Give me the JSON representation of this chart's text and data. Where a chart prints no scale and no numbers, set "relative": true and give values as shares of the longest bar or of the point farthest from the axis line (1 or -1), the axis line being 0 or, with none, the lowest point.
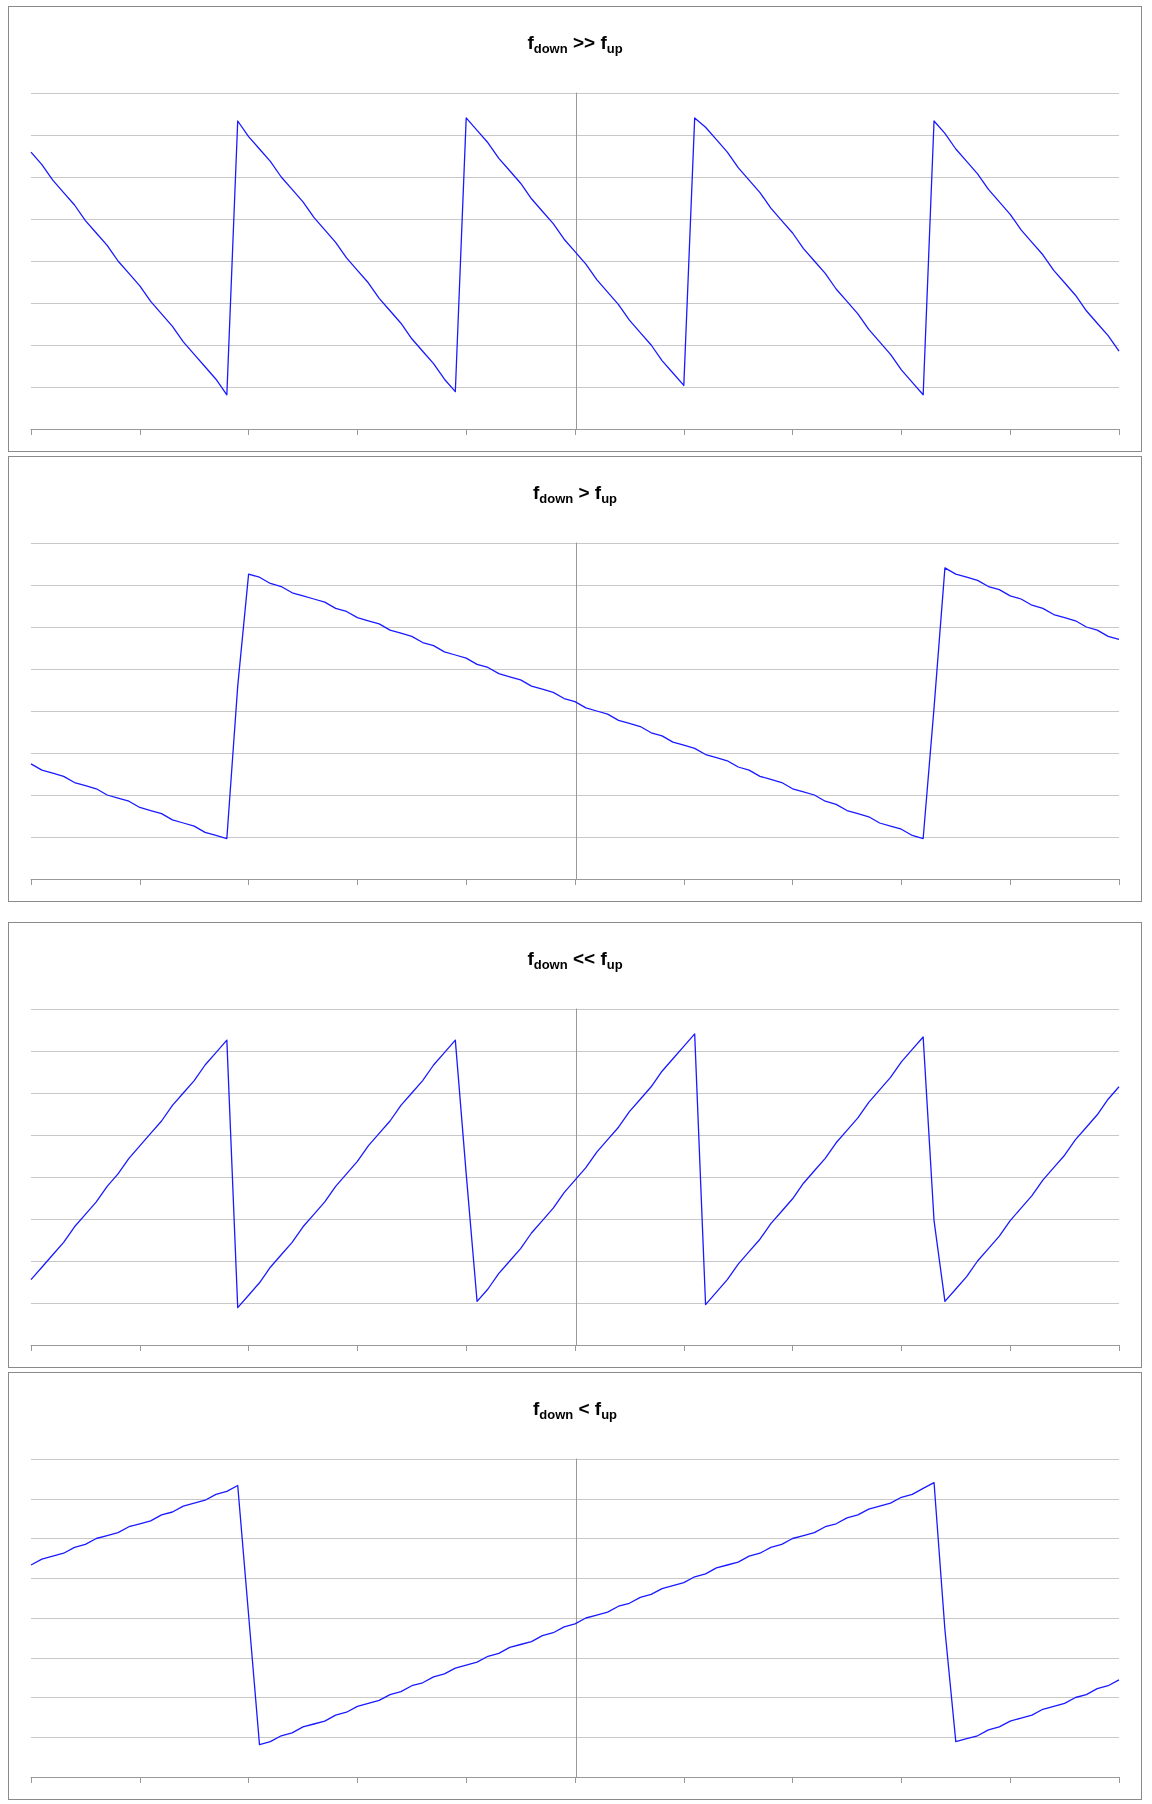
{
  "chart_data": [
    {
      "type": "line",
      "title": "f$_{down}$ >> f$_{up}$",
      "relative": true,
      "grid": "y",
      "categories": [
        null,
        null,
        null,
        null,
        null,
        null,
        null,
        null,
        null,
        null,
        null,
        null,
        null,
        null,
        null,
        null,
        null,
        null,
        null,
        null,
        null,
        null,
        null,
        null,
        null,
        null,
        null,
        null,
        null,
        null,
        null,
        null,
        null,
        null,
        null,
        null,
        null,
        null,
        null,
        null,
        null,
        null,
        null,
        null,
        null,
        null,
        null,
        null,
        null,
        null,
        null,
        null,
        null,
        null,
        null,
        null,
        null,
        null,
        null,
        null,
        null,
        null,
        null,
        null,
        null,
        null,
        null,
        null,
        null,
        null,
        null,
        null,
        null,
        null,
        null,
        null,
        null,
        null,
        null,
        null,
        null,
        null,
        null,
        null,
        null,
        null,
        null,
        null,
        null,
        null,
        null,
        null,
        null,
        null,
        null,
        null,
        null,
        null,
        null,
        null,
        null
      ],
      "series": [
        {
          "color": "#1a1aff",
          "values": [
            0.89,
            0.85,
            0.8,
            0.76,
            0.72,
            0.67,
            0.63,
            0.59,
            0.54,
            0.5,
            0.46,
            0.41,
            0.37,
            0.33,
            0.28,
            0.24,
            0.2,
            0.16,
            0.11,
            0.99,
            0.94,
            0.9,
            0.86,
            0.81,
            0.77,
            0.73,
            0.68,
            0.64,
            0.6,
            0.55,
            0.51,
            0.47,
            0.42,
            0.38,
            0.34,
            0.29,
            0.25,
            0.21,
            0.16,
            0.12,
            1.0,
            0.96,
            0.92,
            0.87,
            0.83,
            0.79,
            0.74,
            0.7,
            0.66,
            0.61,
            0.57,
            0.53,
            0.48,
            0.44,
            0.4,
            0.35,
            0.31,
            0.27,
            0.22,
            0.18,
            0.14,
            1.0,
            0.97,
            0.93,
            0.89,
            0.84,
            0.8,
            0.76,
            0.71,
            0.67,
            0.63,
            0.58,
            0.54,
            0.5,
            0.45,
            0.41,
            0.37,
            0.32,
            0.28,
            0.24,
            0.19,
            0.15,
            0.11,
            0.99,
            0.95,
            0.9,
            0.86,
            0.82,
            0.77,
            0.73,
            0.69,
            0.64,
            0.6,
            0.56,
            0.51,
            0.47,
            0.43,
            0.38,
            0.34,
            0.3,
            0.25
          ]
        }
      ]
    },
    {
      "type": "line",
      "title": "f$_{down}$ > f$_{up}$",
      "relative": true,
      "grid": "y",
      "categories": [
        null,
        null,
        null,
        null,
        null,
        null,
        null,
        null,
        null,
        null,
        null,
        null,
        null,
        null,
        null,
        null,
        null,
        null,
        null,
        null,
        null,
        null,
        null,
        null,
        null,
        null,
        null,
        null,
        null,
        null,
        null,
        null,
        null,
        null,
        null,
        null,
        null,
        null,
        null,
        null,
        null,
        null,
        null,
        null,
        null,
        null,
        null,
        null,
        null,
        null,
        null,
        null,
        null,
        null,
        null,
        null,
        null,
        null,
        null,
        null,
        null,
        null,
        null,
        null,
        null,
        null,
        null,
        null,
        null,
        null,
        null,
        null,
        null,
        null,
        null,
        null,
        null,
        null,
        null,
        null,
        null,
        null,
        null,
        null,
        null,
        null,
        null,
        null,
        null,
        null,
        null,
        null,
        null,
        null,
        null,
        null,
        null,
        null,
        null,
        null,
        null
      ],
      "series": [
        {
          "color": "#1a1aff",
          "values": [
            0.37,
            0.35,
            0.34,
            0.33,
            0.31,
            0.3,
            0.29,
            0.27,
            0.26,
            0.25,
            0.23,
            0.22,
            0.21,
            0.19,
            0.18,
            0.17,
            0.15,
            0.14,
            0.13,
            0.62,
            0.98,
            0.97,
            0.95,
            0.94,
            0.92,
            0.91,
            0.9,
            0.89,
            0.87,
            0.86,
            0.84,
            0.83,
            0.82,
            0.8,
            0.79,
            0.78,
            0.76,
            0.75,
            0.73,
            0.72,
            0.71,
            0.69,
            0.68,
            0.66,
            0.65,
            0.64,
            0.62,
            0.61,
            0.6,
            0.58,
            0.57,
            0.55,
            0.54,
            0.53,
            0.51,
            0.5,
            0.49,
            0.47,
            0.46,
            0.44,
            0.43,
            0.42,
            0.4,
            0.39,
            0.38,
            0.36,
            0.35,
            0.33,
            0.32,
            0.31,
            0.29,
            0.28,
            0.27,
            0.25,
            0.24,
            0.22,
            0.21,
            0.2,
            0.18,
            0.17,
            0.16,
            0.14,
            0.13,
            0.55,
            1.0,
            0.98,
            0.97,
            0.96,
            0.94,
            0.93,
            0.91,
            0.9,
            0.88,
            0.87,
            0.85,
            0.84,
            0.83,
            0.81,
            0.8,
            0.78,
            0.77
          ]
        }
      ]
    },
    {
      "type": "line",
      "title": "f$_{down}$ << f$_{up}$",
      "relative": true,
      "grid": "y",
      "categories": [
        null,
        null,
        null,
        null,
        null,
        null,
        null,
        null,
        null,
        null,
        null,
        null,
        null,
        null,
        null,
        null,
        null,
        null,
        null,
        null,
        null,
        null,
        null,
        null,
        null,
        null,
        null,
        null,
        null,
        null,
        null,
        null,
        null,
        null,
        null,
        null,
        null,
        null,
        null,
        null,
        null,
        null,
        null,
        null,
        null,
        null,
        null,
        null,
        null,
        null,
        null,
        null,
        null,
        null,
        null,
        null,
        null,
        null,
        null,
        null,
        null,
        null,
        null,
        null,
        null,
        null,
        null,
        null,
        null,
        null,
        null,
        null,
        null,
        null,
        null,
        null,
        null,
        null,
        null,
        null,
        null,
        null,
        null,
        null,
        null,
        null,
        null,
        null,
        null,
        null,
        null,
        null,
        null,
        null,
        null,
        null,
        null,
        null,
        null,
        null,
        null
      ],
      "series": [
        {
          "color": "#1a1aff",
          "values": [
            0.21,
            0.25,
            0.29,
            0.33,
            0.38,
            0.42,
            0.46,
            0.51,
            0.55,
            0.6,
            0.64,
            0.68,
            0.72,
            0.77,
            0.81,
            0.85,
            0.9,
            0.94,
            0.98,
            0.12,
            0.16,
            0.2,
            0.25,
            0.29,
            0.33,
            0.38,
            0.42,
            0.46,
            0.51,
            0.55,
            0.59,
            0.64,
            0.68,
            0.72,
            0.77,
            0.81,
            0.85,
            0.9,
            0.94,
            0.98,
            0.55,
            0.14,
            0.18,
            0.23,
            0.27,
            0.31,
            0.36,
            0.4,
            0.44,
            0.49,
            0.53,
            0.57,
            0.62,
            0.66,
            0.7,
            0.75,
            0.79,
            0.83,
            0.88,
            0.92,
            0.96,
            1.0,
            0.13,
            0.17,
            0.21,
            0.26,
            0.3,
            0.34,
            0.39,
            0.43,
            0.47,
            0.52,
            0.56,
            0.6,
            0.65,
            0.69,
            0.73,
            0.78,
            0.82,
            0.86,
            0.91,
            0.95,
            0.99,
            0.4,
            0.14,
            0.18,
            0.22,
            0.27,
            0.31,
            0.35,
            0.4,
            0.44,
            0.48,
            0.53,
            0.57,
            0.61,
            0.66,
            0.7,
            0.74,
            0.79,
            0.83
          ]
        }
      ]
    },
    {
      "type": "line",
      "title": "f$_{down}$ < f$_{up}$",
      "relative": true,
      "grid": "y",
      "categories": [
        null,
        null,
        null,
        null,
        null,
        null,
        null,
        null,
        null,
        null,
        null,
        null,
        null,
        null,
        null,
        null,
        null,
        null,
        null,
        null,
        null,
        null,
        null,
        null,
        null,
        null,
        null,
        null,
        null,
        null,
        null,
        null,
        null,
        null,
        null,
        null,
        null,
        null,
        null,
        null,
        null,
        null,
        null,
        null,
        null,
        null,
        null,
        null,
        null,
        null,
        null,
        null,
        null,
        null,
        null,
        null,
        null,
        null,
        null,
        null,
        null,
        null,
        null,
        null,
        null,
        null,
        null,
        null,
        null,
        null,
        null,
        null,
        null,
        null,
        null,
        null,
        null,
        null,
        null,
        null,
        null,
        null,
        null,
        null,
        null,
        null,
        null,
        null,
        null,
        null,
        null,
        null,
        null,
        null,
        null,
        null,
        null,
        null,
        null,
        null,
        null
      ],
      "series": [
        {
          "color": "#1a1aff",
          "values": [
            0.72,
            0.74,
            0.75,
            0.76,
            0.78,
            0.79,
            0.81,
            0.82,
            0.83,
            0.85,
            0.86,
            0.87,
            0.89,
            0.9,
            0.92,
            0.93,
            0.94,
            0.96,
            0.97,
            0.99,
            0.55,
            0.11,
            0.12,
            0.14,
            0.15,
            0.17,
            0.18,
            0.19,
            0.21,
            0.22,
            0.24,
            0.25,
            0.26,
            0.28,
            0.29,
            0.31,
            0.32,
            0.34,
            0.35,
            0.37,
            0.38,
            0.39,
            0.41,
            0.42,
            0.44,
            0.45,
            0.46,
            0.48,
            0.49,
            0.51,
            0.52,
            0.54,
            0.55,
            0.56,
            0.58,
            0.59,
            0.61,
            0.62,
            0.64,
            0.65,
            0.66,
            0.68,
            0.69,
            0.71,
            0.72,
            0.73,
            0.75,
            0.76,
            0.78,
            0.79,
            0.81,
            0.82,
            0.83,
            0.85,
            0.86,
            0.88,
            0.89,
            0.91,
            0.92,
            0.93,
            0.95,
            0.96,
            0.98,
            1.0,
            0.5,
            0.12,
            0.13,
            0.14,
            0.16,
            0.17,
            0.19,
            0.2,
            0.21,
            0.23,
            0.24,
            0.25,
            0.27,
            0.28,
            0.3,
            0.31,
            0.33
          ]
        }
      ]
    }
  ]
}
